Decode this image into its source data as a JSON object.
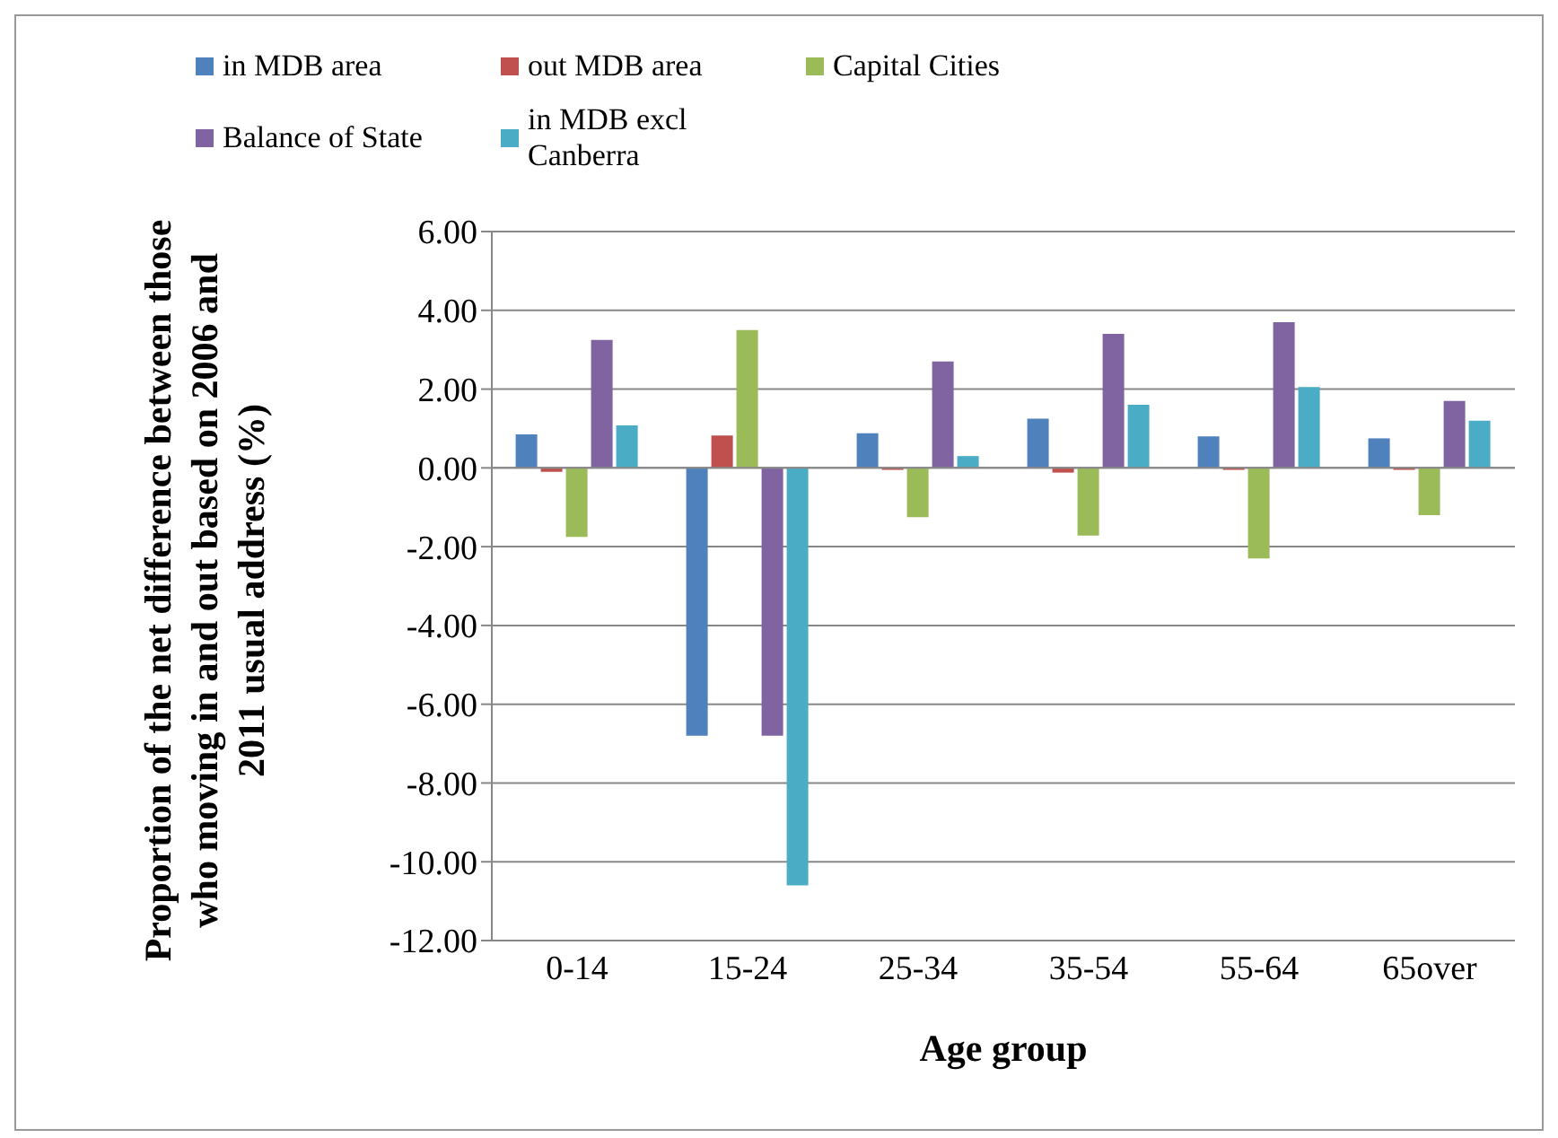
{
  "chart_data": {
    "type": "bar",
    "xlabel": "Age group",
    "ylabel": "Proportion of the net difference between those who moving in and out based on 2006 and 2011 usual address (%)",
    "categories": [
      "0-14",
      "15-24",
      "25-34",
      "35-54",
      "55-64",
      "65over"
    ],
    "series": [
      {
        "name": "in MDB area",
        "color": "#4f81bd",
        "values": [
          0.85,
          -6.8,
          0.88,
          1.25,
          0.8,
          0.75
        ]
      },
      {
        "name": "out MDB area",
        "color": "#c0504d",
        "values": [
          -0.1,
          0.82,
          -0.05,
          -0.12,
          -0.05,
          -0.05
        ]
      },
      {
        "name": "Capital Cities",
        "color": "#9bbb59",
        "values": [
          -1.75,
          3.5,
          -1.25,
          -1.72,
          -2.3,
          -1.2
        ]
      },
      {
        "name": "Balance of State",
        "color": "#8064a2",
        "values": [
          3.25,
          -6.8,
          2.7,
          3.4,
          3.7,
          1.7
        ]
      },
      {
        "name": "in MDB excl Canberra",
        "color": "#4bacc6",
        "values": [
          1.08,
          -10.6,
          0.3,
          1.6,
          2.05,
          1.2
        ]
      }
    ],
    "ylim": [
      -12,
      6
    ],
    "yticks": [
      {
        "value": -12,
        "label": "-12.00"
      },
      {
        "value": -10,
        "label": "-10.00"
      },
      {
        "value": -8,
        "label": "-8.00"
      },
      {
        "value": -6,
        "label": "-6.00"
      },
      {
        "value": -4,
        "label": "-4.00"
      },
      {
        "value": -2,
        "label": "-2.00"
      },
      {
        "value": 0,
        "label": "0.00"
      },
      {
        "value": 2,
        "label": "2.00"
      },
      {
        "value": 4,
        "label": "4.00"
      },
      {
        "value": 6,
        "label": "6.00"
      }
    ],
    "grid": "y",
    "legend": "top"
  }
}
